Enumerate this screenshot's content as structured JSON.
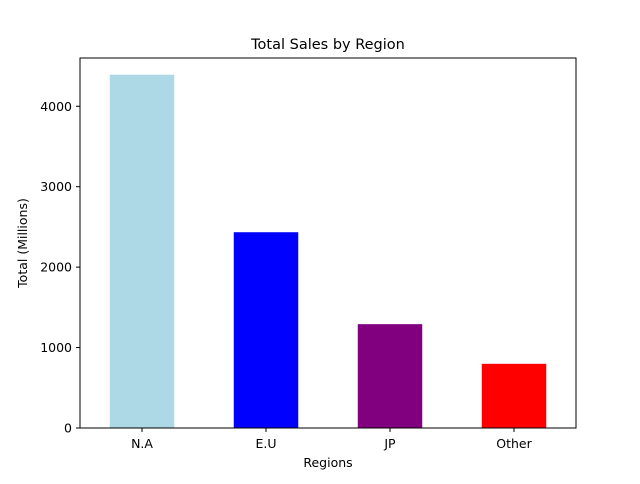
{
  "chart_data": {
    "type": "bar",
    "title": "Total Sales by Region",
    "xlabel": "Regions",
    "ylabel": "Total (Millions)",
    "categories": [
      "N.A",
      "E.U",
      "JP",
      "Other"
    ],
    "values": [
      4392,
      2434,
      1291,
      798
    ],
    "colors": [
      "#add8e6",
      "#0000ff",
      "#800080",
      "#ff0000"
    ],
    "ylim": [
      0,
      4600
    ],
    "yticks": [
      0,
      1000,
      2000,
      3000,
      4000
    ],
    "grid": false,
    "legend": "none"
  }
}
